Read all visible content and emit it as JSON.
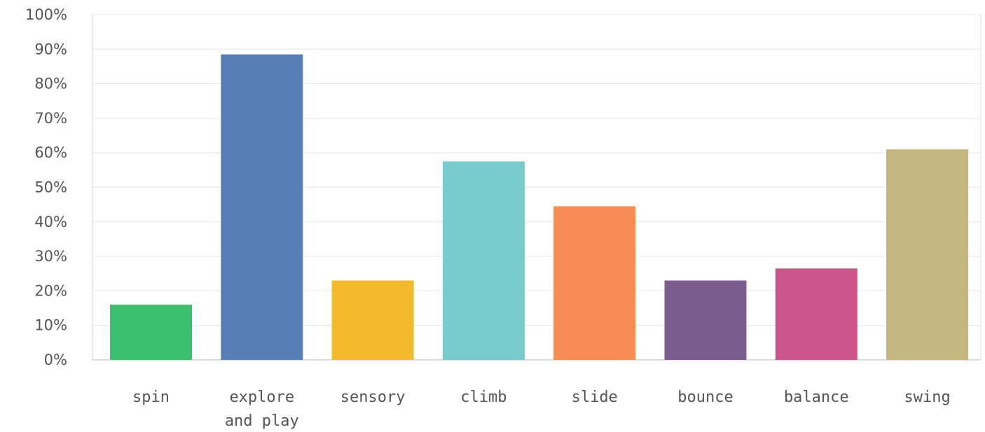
{
  "chart_data": {
    "type": "bar",
    "categories": [
      "spin",
      "explore and play",
      "sensory",
      "climb",
      "slide",
      "bounce",
      "balance",
      "swing"
    ],
    "category_lines": [
      [
        "spin"
      ],
      [
        "explore",
        "and play"
      ],
      [
        "sensory"
      ],
      [
        "climb"
      ],
      [
        "slide"
      ],
      [
        "bounce"
      ],
      [
        "balance"
      ],
      [
        "swing"
      ]
    ],
    "values": [
      16,
      88.5,
      23,
      57.5,
      44.5,
      23,
      26.5,
      61
    ],
    "colors": [
      "#3cbf6e",
      "#587cb4",
      "#f3ba2f",
      "#78cacb",
      "#f58b55",
      "#7d5c90",
      "#cc568c",
      "#c5b67f"
    ],
    "ylim": [
      0,
      100
    ],
    "yticks": [
      "0%",
      "10%",
      "20%",
      "30%",
      "40%",
      "50%",
      "60%",
      "70%",
      "80%",
      "90%",
      "100%"
    ],
    "grid": true,
    "title": "",
    "xlabel": "",
    "ylabel": ""
  }
}
